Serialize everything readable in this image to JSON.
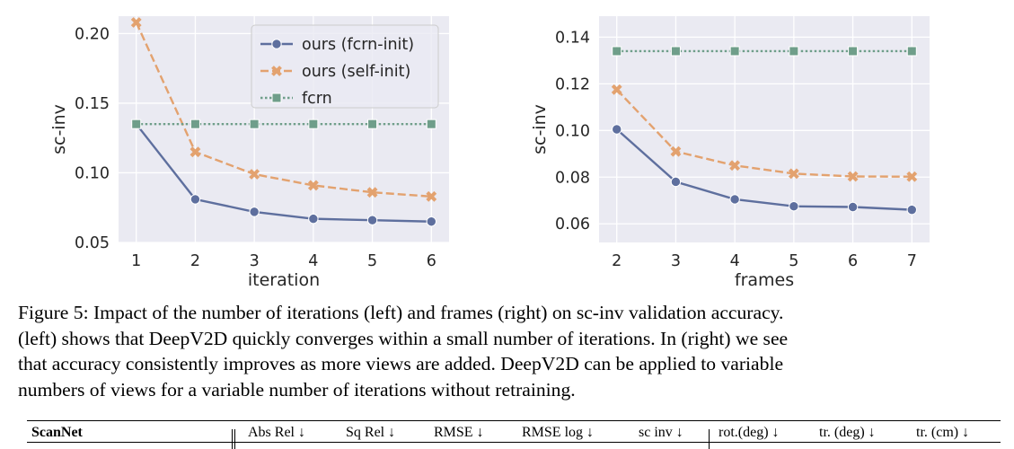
{
  "chart_data": [
    {
      "type": "line",
      "xlabel": "iteration",
      "ylabel": "sc-inv",
      "x": [
        1,
        2,
        3,
        4,
        5,
        6
      ],
      "xticks": [
        "1",
        "2",
        "3",
        "4",
        "5",
        "6"
      ],
      "yticks": [
        "0.05",
        "0.10",
        "0.15",
        "0.20"
      ],
      "ylim": [
        0.05,
        0.2125
      ],
      "grid": true,
      "legend_position": "top-right",
      "series": [
        {
          "name": "ours (fcrn-init)",
          "values": [
            0.135,
            0.081,
            0.072,
            0.067,
            0.066,
            0.065
          ],
          "color": "#5e6f9e",
          "marker": "circle",
          "dash": "solid"
        },
        {
          "name": "ours (self-init)",
          "values": [
            0.208,
            0.115,
            0.099,
            0.091,
            0.086,
            0.083
          ],
          "color": "#e3a26f",
          "marker": "x",
          "dash": "dashed"
        },
        {
          "name": "fcrn",
          "values": [
            0.135,
            0.135,
            0.135,
            0.135,
            0.135,
            0.135
          ],
          "color": "#6f9e8a",
          "marker": "square",
          "dash": "dotted"
        }
      ]
    },
    {
      "type": "line",
      "xlabel": "frames",
      "ylabel": "sc-inv",
      "x": [
        2,
        3,
        4,
        5,
        6,
        7
      ],
      "xticks": [
        "2",
        "3",
        "4",
        "5",
        "6",
        "7"
      ],
      "yticks": [
        "0.06",
        "0.08",
        "0.10",
        "0.12",
        "0.14"
      ],
      "ylim": [
        0.052,
        0.149
      ],
      "grid": true,
      "series": [
        {
          "values": [
            0.1005,
            0.078,
            0.0705,
            0.0675,
            0.0672,
            0.066
          ],
          "color": "#5e6f9e",
          "marker": "circle",
          "dash": "solid"
        },
        {
          "values": [
            0.1175,
            0.091,
            0.085,
            0.0815,
            0.0803,
            0.0802
          ],
          "color": "#e3a26f",
          "marker": "x",
          "dash": "dashed"
        },
        {
          "values": [
            0.134,
            0.134,
            0.134,
            0.134,
            0.134,
            0.134
          ],
          "color": "#6f9e8a",
          "marker": "square",
          "dash": "dotted"
        }
      ]
    }
  ],
  "caption": {
    "line1": "Figure 5: Impact of the number of iterations (left) and frames (right) on sc-inv validation accuracy.",
    "line2": "(left) shows that DeepV2D quickly converges within a small number of iterations. In (right) we see",
    "line3": "that accuracy consistently improves as more views are added. DeepV2D can be applied to variable",
    "line4": "numbers of views for a variable number of iterations without retraining."
  },
  "table": {
    "dataset": "ScanNet",
    "columns": [
      "Abs Rel ↓",
      "Sq Rel ↓",
      "RMSE ↓",
      "RMSE log ↓",
      "sc inv ↓",
      "rot.(deg) ↓",
      "tr. (deg) ↓",
      "tr. (cm) ↓"
    ]
  }
}
